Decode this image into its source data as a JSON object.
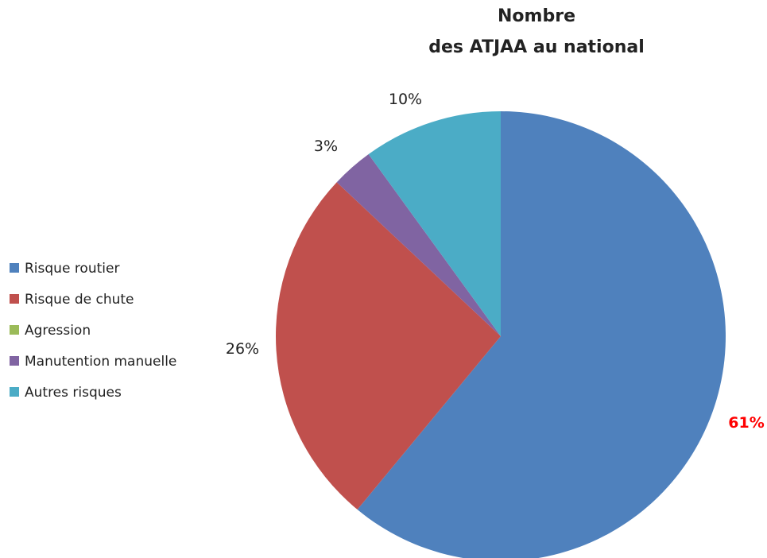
{
  "chart_data": {
    "type": "pie",
    "title_lines": [
      "Nombre",
      "des ATJAA au national"
    ],
    "categories": [
      "Risque routier",
      "Risque de chute",
      "Agression",
      "Manutention manuelle",
      "Autres risques"
    ],
    "values": [
      61,
      26,
      0,
      3,
      10
    ],
    "labels": [
      "61%",
      "26%",
      "",
      "3%",
      "10%"
    ],
    "colors": [
      "#4f81bd",
      "#c0504d",
      "#9bbb59",
      "#8064a2",
      "#4bacc6"
    ],
    "highlight_label_color": "#ff0000",
    "legend_position": "left",
    "start_angle": "12 o'clock, clockwise"
  }
}
